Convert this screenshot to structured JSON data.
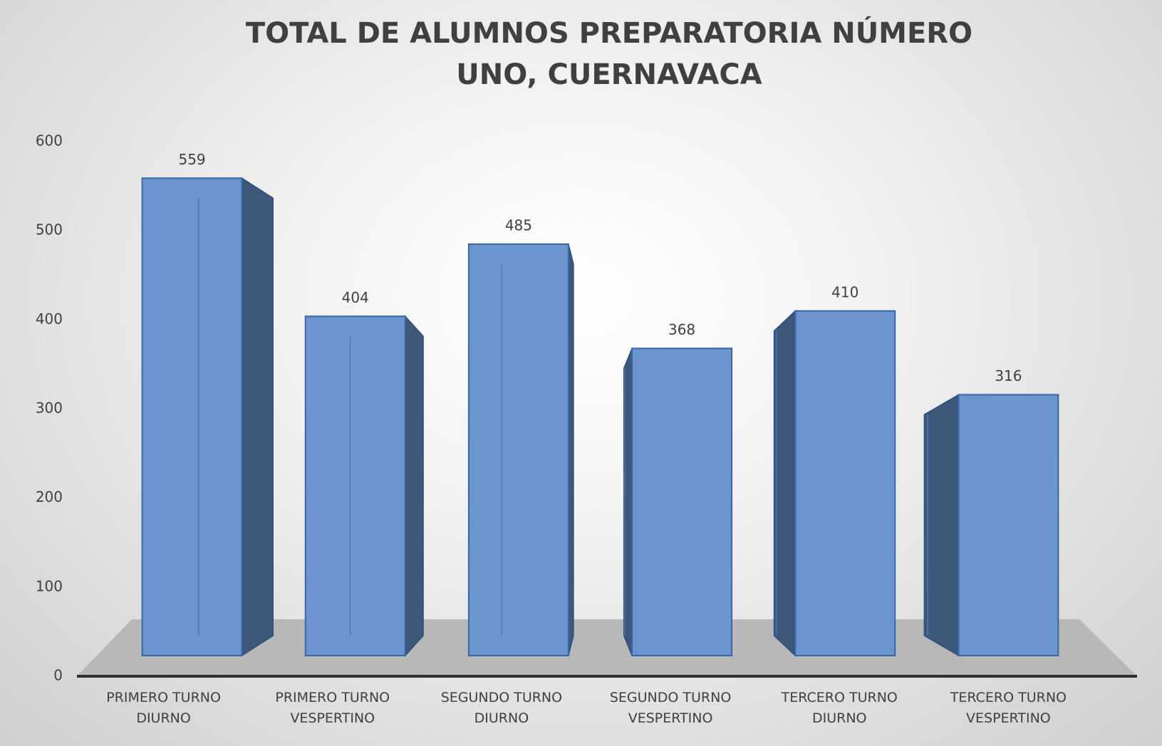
{
  "chart_data": {
    "type": "bar",
    "title": "TOTAL DE ALUMNOS PREPARATORIA NÚMERO UNO, CUERNAVACA",
    "categories": [
      "PRIMERO TURNO DIURNO",
      "PRIMERO TURNO VESPERTINO",
      "SEGUNDO TURNO DIURNO",
      "SEGUNDO TURNO VESPERTINO",
      "TERCERO TURNO DIURNO",
      "TERCERO TURNO VESPERTINO"
    ],
    "values": [
      559,
      404,
      485,
      368,
      410,
      316
    ],
    "color": "#6a95cf",
    "ylim": [
      0,
      600
    ],
    "yticks": [
      0,
      100,
      200,
      300,
      400,
      500,
      600
    ],
    "grid": false
  }
}
